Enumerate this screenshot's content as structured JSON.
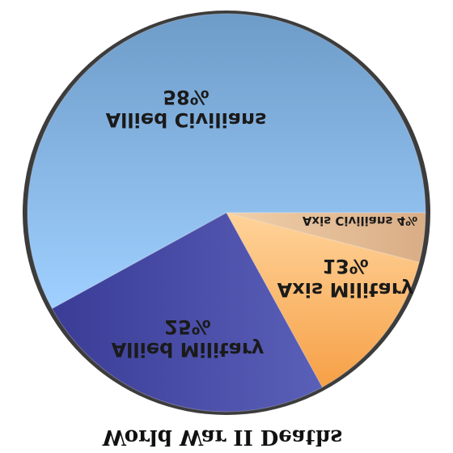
{
  "chart_data": {
    "type": "pie",
    "title": "World War II Deaths",
    "slices": [
      {
        "label": "Allied Civilians",
        "value": 58,
        "value_label": "58%",
        "color": "#8ec3f4"
      },
      {
        "label": "Allied Military",
        "value": 25,
        "value_label": "25%",
        "color": "#4448a8"
      },
      {
        "label": "Axis Military",
        "value": 13,
        "value_label": "13%",
        "color": "#fbb56c"
      },
      {
        "label": "Axis Civilians",
        "value": 4,
        "value_label": "4%",
        "color": "#e8c7a6"
      }
    ],
    "appearance": {
      "mirrored_vertically": true,
      "shaded_3d": true
    }
  }
}
